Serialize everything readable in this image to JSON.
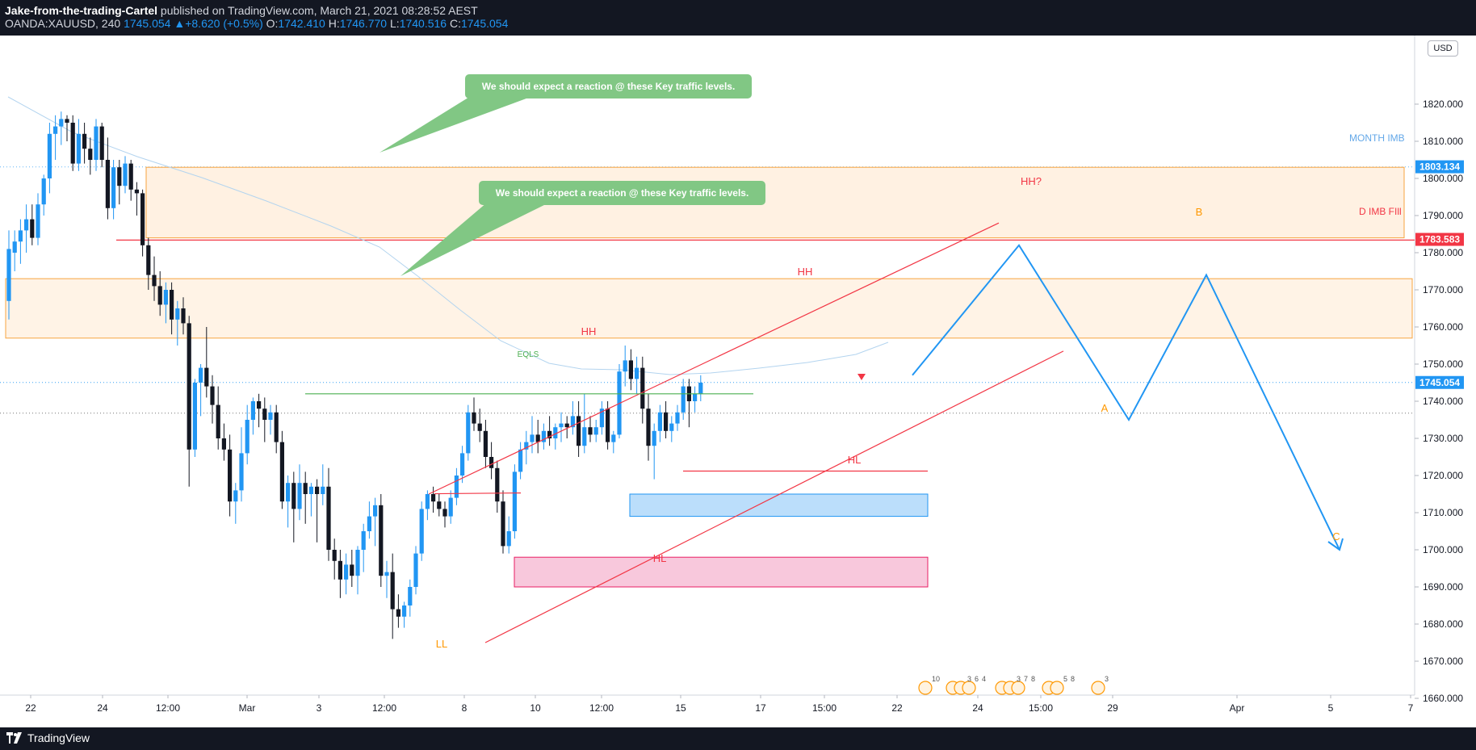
{
  "header": {
    "author": "Jake-from-the-trading-Cartel",
    "published": " published on TradingView.com, March 21, 2021 08:28:52 AEST",
    "symbol": "OANDA:XAUUSD, 240",
    "last": "1745.054",
    "change": "+8.620 (+0.5%)",
    "o_label": "O:",
    "o": "1742.410",
    "h_label": "H:",
    "h": "1746.770",
    "l_label": "L:",
    "l": "1740.516",
    "c_label": "C:",
    "c": "1745.054"
  },
  "currency": "USD",
  "brand": "TradingView",
  "chart_data": {
    "type": "candlestick",
    "y_ticks": [
      "1820.000",
      "1810.000",
      "1800.000",
      "1790.000",
      "1780.000",
      "1770.000",
      "1760.000",
      "1750.000",
      "1740.000",
      "1730.000",
      "1720.000",
      "1710.000",
      "1700.000",
      "1690.000",
      "1680.000",
      "1670.000",
      "1660.000"
    ],
    "ylim": [
      1653,
      1827
    ],
    "x_ticks": [
      "22",
      "24",
      "12:00",
      "Mar",
      "3",
      "12:00",
      "8",
      "10",
      "12:00",
      "15",
      "17",
      "15:00",
      "22",
      "24",
      "15:00",
      "29",
      "Apr",
      "5",
      "7"
    ],
    "price_tags": [
      {
        "label": "1803.134",
        "value": 1803.134,
        "color": "#2196f3"
      },
      {
        "label": "1783.583",
        "value": 1783.583,
        "color": "#f23645"
      },
      {
        "label": "1745.054",
        "value": 1745.054,
        "color": "#2196f3"
      }
    ],
    "zones": [
      {
        "name": "month-imb-zone",
        "top": 1803,
        "bottom": 1784,
        "fill": "#fff1e2",
        "stroke": "#f7a440"
      },
      {
        "name": "key-level-zone",
        "top": 1773,
        "bottom": 1757,
        "fill": "#fff3e6",
        "stroke": "#f7a440"
      },
      {
        "name": "blue-demand-zone",
        "top": 1715,
        "bottom": 1709,
        "fill": "#bbdefb",
        "stroke": "#2196f3"
      },
      {
        "name": "pink-demand-zone",
        "top": 1698,
        "bottom": 1690,
        "fill": "#f8c8dc",
        "stroke": "#e91e63"
      }
    ],
    "callouts": [
      "We should expect a reaction @ these Key traffic levels.",
      "We should expect a reaction @ these Key traffic levels."
    ],
    "annotations": [
      {
        "text": "MONTH IMB",
        "color": "#64a8e8"
      },
      {
        "text": "D IMB FIll",
        "color": "#f23645"
      },
      {
        "text": "HH?",
        "color": "#f23645"
      },
      {
        "text": "HH",
        "color": "#f23645"
      },
      {
        "text": "HH",
        "color": "#f23645"
      },
      {
        "text": "EQLS",
        "color": "#4caf50"
      },
      {
        "text": "HL",
        "color": "#f23645"
      },
      {
        "text": "HL",
        "color": "#f23645"
      },
      {
        "text": "LL",
        "color": "#ff9800"
      },
      {
        "text": "A",
        "color": "#ff9800"
      },
      {
        "text": "B",
        "color": "#ff9800"
      },
      {
        "text": "C",
        "color": "#ff9800"
      }
    ],
    "events": [
      "10",
      "3",
      "6",
      "4",
      "3",
      "7",
      "8",
      "5",
      "8",
      "3"
    ],
    "candles": [
      {
        "o": 1767,
        "h": 1786,
        "l": 1762,
        "c": 1781
      },
      {
        "o": 1780,
        "h": 1786,
        "l": 1775,
        "c": 1783
      },
      {
        "o": 1783,
        "h": 1789,
        "l": 1777,
        "c": 1786
      },
      {
        "o": 1786,
        "h": 1793,
        "l": 1780,
        "c": 1789
      },
      {
        "o": 1789,
        "h": 1793,
        "l": 1782,
        "c": 1784
      },
      {
        "o": 1784,
        "h": 1796,
        "l": 1782,
        "c": 1793
      },
      {
        "o": 1793,
        "h": 1801,
        "l": 1790,
        "c": 1800
      },
      {
        "o": 1800,
        "h": 1815,
        "l": 1796,
        "c": 1812
      },
      {
        "o": 1812,
        "h": 1817,
        "l": 1805,
        "c": 1814
      },
      {
        "o": 1814,
        "h": 1818,
        "l": 1809,
        "c": 1816
      },
      {
        "o": 1816,
        "h": 1817,
        "l": 1810,
        "c": 1815
      },
      {
        "o": 1815,
        "h": 1817,
        "l": 1802,
        "c": 1804
      },
      {
        "o": 1804,
        "h": 1816,
        "l": 1802,
        "c": 1812
      },
      {
        "o": 1812,
        "h": 1815,
        "l": 1804,
        "c": 1808
      },
      {
        "o": 1808,
        "h": 1811,
        "l": 1801,
        "c": 1805
      },
      {
        "o": 1805,
        "h": 1816,
        "l": 1802,
        "c": 1814
      },
      {
        "o": 1814,
        "h": 1815,
        "l": 1803,
        "c": 1805
      },
      {
        "o": 1805,
        "h": 1811,
        "l": 1789,
        "c": 1792
      },
      {
        "o": 1792,
        "h": 1805,
        "l": 1789,
        "c": 1803
      },
      {
        "o": 1803,
        "h": 1805,
        "l": 1793,
        "c": 1798
      },
      {
        "o": 1798,
        "h": 1806,
        "l": 1796,
        "c": 1804
      },
      {
        "o": 1804,
        "h": 1805,
        "l": 1794,
        "c": 1797
      },
      {
        "o": 1797,
        "h": 1799,
        "l": 1790,
        "c": 1796
      },
      {
        "o": 1796,
        "h": 1797,
        "l": 1779,
        "c": 1782
      },
      {
        "o": 1782,
        "h": 1784,
        "l": 1770,
        "c": 1774
      },
      {
        "o": 1774,
        "h": 1779,
        "l": 1767,
        "c": 1771
      },
      {
        "o": 1771,
        "h": 1775,
        "l": 1763,
        "c": 1766
      },
      {
        "o": 1766,
        "h": 1772,
        "l": 1761,
        "c": 1770
      },
      {
        "o": 1770,
        "h": 1772,
        "l": 1758,
        "c": 1762
      },
      {
        "o": 1762,
        "h": 1767,
        "l": 1755,
        "c": 1765
      },
      {
        "o": 1765,
        "h": 1768,
        "l": 1758,
        "c": 1761
      },
      {
        "o": 1761,
        "h": 1763,
        "l": 1717,
        "c": 1727
      },
      {
        "o": 1727,
        "h": 1746,
        "l": 1725,
        "c": 1745
      },
      {
        "o": 1745,
        "h": 1750,
        "l": 1736,
        "c": 1749
      },
      {
        "o": 1749,
        "h": 1760,
        "l": 1741,
        "c": 1744
      },
      {
        "o": 1744,
        "h": 1747,
        "l": 1734,
        "c": 1739
      },
      {
        "o": 1739,
        "h": 1744,
        "l": 1727,
        "c": 1730
      },
      {
        "o": 1730,
        "h": 1734,
        "l": 1724,
        "c": 1727
      },
      {
        "o": 1727,
        "h": 1731,
        "l": 1709,
        "c": 1713
      },
      {
        "o": 1713,
        "h": 1718,
        "l": 1707,
        "c": 1716
      },
      {
        "o": 1716,
        "h": 1733,
        "l": 1713,
        "c": 1726
      },
      {
        "o": 1726,
        "h": 1739,
        "l": 1723,
        "c": 1735
      },
      {
        "o": 1735,
        "h": 1741,
        "l": 1731,
        "c": 1740
      },
      {
        "o": 1740,
        "h": 1742,
        "l": 1733,
        "c": 1738
      },
      {
        "o": 1738,
        "h": 1741,
        "l": 1729,
        "c": 1735
      },
      {
        "o": 1735,
        "h": 1739,
        "l": 1731,
        "c": 1737
      },
      {
        "o": 1737,
        "h": 1739,
        "l": 1726,
        "c": 1729
      },
      {
        "o": 1729,
        "h": 1732,
        "l": 1711,
        "c": 1713
      },
      {
        "o": 1713,
        "h": 1720,
        "l": 1706,
        "c": 1718
      },
      {
        "o": 1718,
        "h": 1721,
        "l": 1702,
        "c": 1711
      },
      {
        "o": 1711,
        "h": 1723,
        "l": 1708,
        "c": 1718
      },
      {
        "o": 1718,
        "h": 1721,
        "l": 1707,
        "c": 1715
      },
      {
        "o": 1715,
        "h": 1718,
        "l": 1709,
        "c": 1717
      },
      {
        "o": 1717,
        "h": 1719,
        "l": 1702,
        "c": 1715
      },
      {
        "o": 1715,
        "h": 1723,
        "l": 1712,
        "c": 1717
      },
      {
        "o": 1717,
        "h": 1722,
        "l": 1697,
        "c": 1700
      },
      {
        "o": 1700,
        "h": 1703,
        "l": 1692,
        "c": 1697
      },
      {
        "o": 1697,
        "h": 1700,
        "l": 1687,
        "c": 1692
      },
      {
        "o": 1692,
        "h": 1699,
        "l": 1688,
        "c": 1696
      },
      {
        "o": 1696,
        "h": 1700,
        "l": 1690,
        "c": 1693
      },
      {
        "o": 1693,
        "h": 1701,
        "l": 1688,
        "c": 1700
      },
      {
        "o": 1700,
        "h": 1707,
        "l": 1694,
        "c": 1705
      },
      {
        "o": 1705,
        "h": 1713,
        "l": 1703,
        "c": 1709
      },
      {
        "o": 1709,
        "h": 1714,
        "l": 1701,
        "c": 1712
      },
      {
        "o": 1712,
        "h": 1715,
        "l": 1690,
        "c": 1693
      },
      {
        "o": 1693,
        "h": 1697,
        "l": 1687,
        "c": 1694
      },
      {
        "o": 1694,
        "h": 1699,
        "l": 1676,
        "c": 1684
      },
      {
        "o": 1684,
        "h": 1688,
        "l": 1679,
        "c": 1682
      },
      {
        "o": 1682,
        "h": 1686,
        "l": 1679,
        "c": 1685
      },
      {
        "o": 1685,
        "h": 1692,
        "l": 1682,
        "c": 1690
      },
      {
        "o": 1690,
        "h": 1701,
        "l": 1688,
        "c": 1699
      },
      {
        "o": 1699,
        "h": 1713,
        "l": 1697,
        "c": 1711
      },
      {
        "o": 1711,
        "h": 1716,
        "l": 1708,
        "c": 1715
      },
      {
        "o": 1715,
        "h": 1717,
        "l": 1710,
        "c": 1713
      },
      {
        "o": 1713,
        "h": 1715,
        "l": 1709,
        "c": 1711
      },
      {
        "o": 1711,
        "h": 1713,
        "l": 1706,
        "c": 1709
      },
      {
        "o": 1709,
        "h": 1716,
        "l": 1707,
        "c": 1714
      },
      {
        "o": 1714,
        "h": 1722,
        "l": 1712,
        "c": 1720
      },
      {
        "o": 1720,
        "h": 1728,
        "l": 1718,
        "c": 1726
      },
      {
        "o": 1726,
        "h": 1739,
        "l": 1724,
        "c": 1737
      },
      {
        "o": 1737,
        "h": 1741,
        "l": 1732,
        "c": 1734
      },
      {
        "o": 1734,
        "h": 1738,
        "l": 1729,
        "c": 1732
      },
      {
        "o": 1732,
        "h": 1735,
        "l": 1722,
        "c": 1725
      },
      {
        "o": 1725,
        "h": 1729,
        "l": 1719,
        "c": 1722
      },
      {
        "o": 1722,
        "h": 1724,
        "l": 1710,
        "c": 1713
      },
      {
        "o": 1713,
        "h": 1716,
        "l": 1699,
        "c": 1701
      },
      {
        "o": 1701,
        "h": 1709,
        "l": 1699,
        "c": 1705
      },
      {
        "o": 1705,
        "h": 1723,
        "l": 1703,
        "c": 1721
      },
      {
        "o": 1721,
        "h": 1729,
        "l": 1719,
        "c": 1727
      },
      {
        "o": 1727,
        "h": 1732,
        "l": 1723,
        "c": 1729
      },
      {
        "o": 1729,
        "h": 1736,
        "l": 1726,
        "c": 1731
      },
      {
        "o": 1731,
        "h": 1735,
        "l": 1726,
        "c": 1729
      },
      {
        "o": 1729,
        "h": 1734,
        "l": 1727,
        "c": 1732
      },
      {
        "o": 1732,
        "h": 1736,
        "l": 1728,
        "c": 1730
      },
      {
        "o": 1730,
        "h": 1734,
        "l": 1727,
        "c": 1733
      },
      {
        "o": 1733,
        "h": 1737,
        "l": 1729,
        "c": 1734
      },
      {
        "o": 1734,
        "h": 1736,
        "l": 1730,
        "c": 1733
      },
      {
        "o": 1733,
        "h": 1740,
        "l": 1731,
        "c": 1736
      },
      {
        "o": 1736,
        "h": 1740,
        "l": 1725,
        "c": 1728
      },
      {
        "o": 1728,
        "h": 1742,
        "l": 1726,
        "c": 1733
      },
      {
        "o": 1733,
        "h": 1736,
        "l": 1729,
        "c": 1731
      },
      {
        "o": 1731,
        "h": 1735,
        "l": 1729,
        "c": 1733
      },
      {
        "o": 1733,
        "h": 1740,
        "l": 1731,
        "c": 1738
      },
      {
        "o": 1738,
        "h": 1740,
        "l": 1727,
        "c": 1729
      },
      {
        "o": 1729,
        "h": 1732,
        "l": 1726,
        "c": 1731
      },
      {
        "o": 1731,
        "h": 1750,
        "l": 1730,
        "c": 1748
      },
      {
        "o": 1748,
        "h": 1755,
        "l": 1744,
        "c": 1751
      },
      {
        "o": 1751,
        "h": 1754,
        "l": 1743,
        "c": 1746
      },
      {
        "o": 1746,
        "h": 1752,
        "l": 1742,
        "c": 1749
      },
      {
        "o": 1749,
        "h": 1752,
        "l": 1734,
        "c": 1738
      },
      {
        "o": 1738,
        "h": 1742,
        "l": 1724,
        "c": 1728
      },
      {
        "o": 1728,
        "h": 1734,
        "l": 1719,
        "c": 1732
      },
      {
        "o": 1732,
        "h": 1739,
        "l": 1729,
        "c": 1737
      },
      {
        "o": 1737,
        "h": 1740,
        "l": 1730,
        "c": 1732
      },
      {
        "o": 1732,
        "h": 1736,
        "l": 1729,
        "c": 1734
      },
      {
        "o": 1734,
        "h": 1739,
        "l": 1732,
        "c": 1737
      },
      {
        "o": 1737,
        "h": 1746,
        "l": 1735,
        "c": 1744
      },
      {
        "o": 1744,
        "h": 1746,
        "l": 1733,
        "c": 1740
      },
      {
        "o": 1740,
        "h": 1744,
        "l": 1737,
        "c": 1742
      },
      {
        "o": 1742,
        "h": 1747,
        "l": 1740,
        "c": 1745
      }
    ],
    "projection": [
      {
        "x_day": 0,
        "y": 1747
      },
      {
        "x_day": 1,
        "y": 1782
      },
      {
        "x_day": 2,
        "y": 1735
      },
      {
        "x_day": 3,
        "y": 1774
      },
      {
        "x_day": 4,
        "y": 1700
      }
    ]
  }
}
